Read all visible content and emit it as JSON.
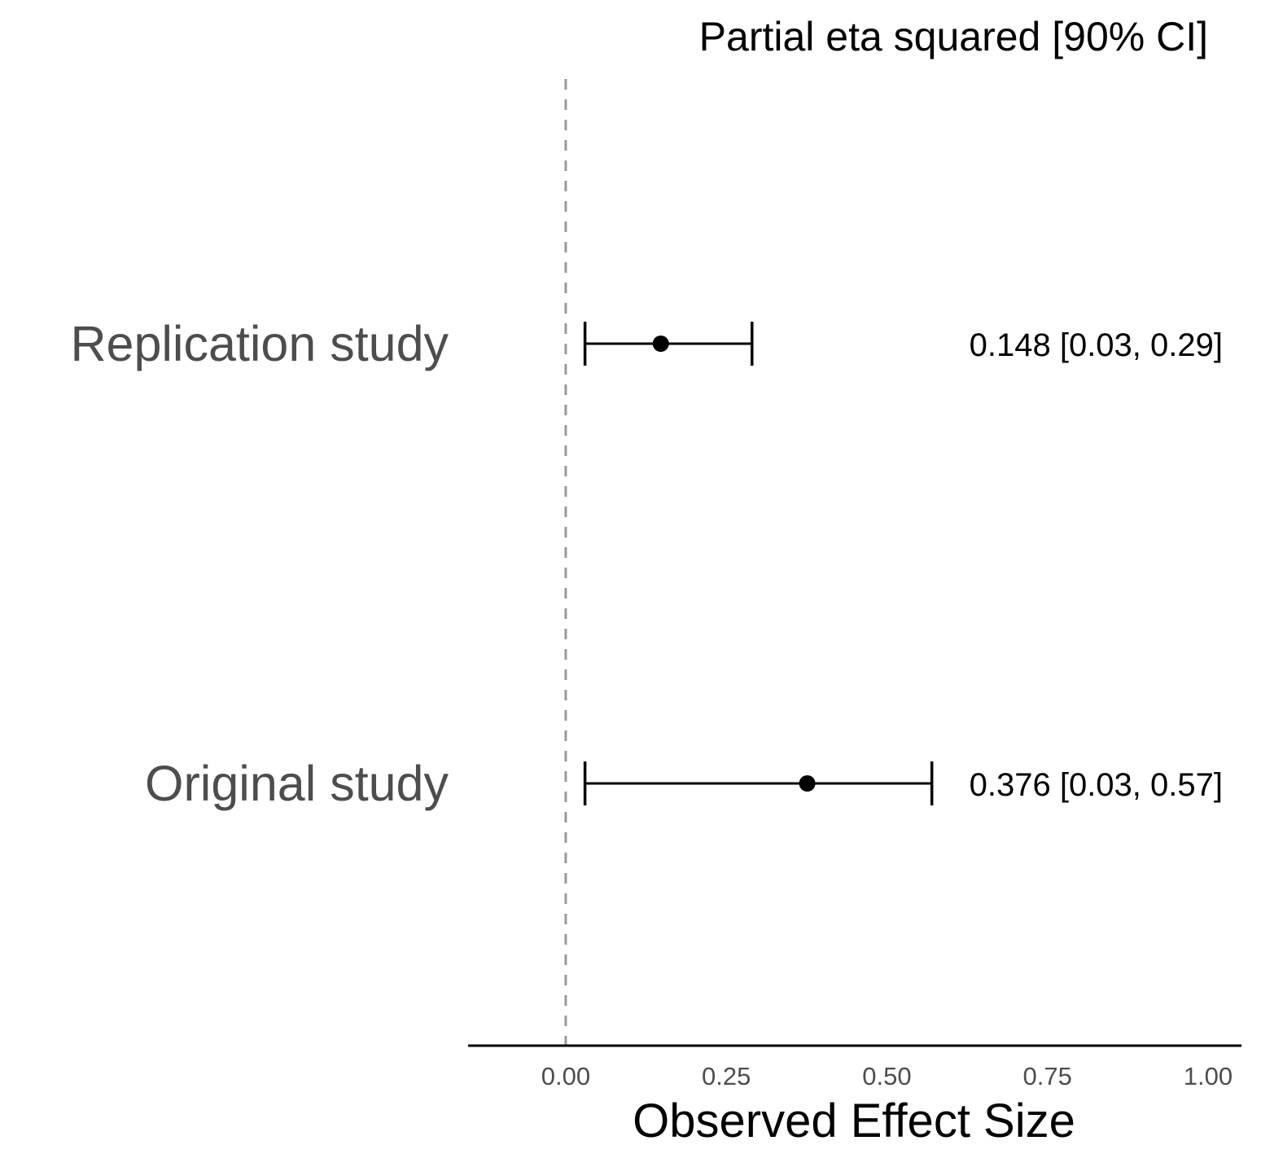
{
  "chart_data": {
    "type": "forest",
    "title": "",
    "right_header": "Partial eta squared [90% CI]",
    "xlabel": "Observed Effect Size",
    "ylabel": "",
    "xlim": [
      -0.152,
      1.052
    ],
    "x_ticks": [
      0,
      0.25,
      0.5,
      0.75,
      1
    ],
    "x_tick_labels": [
      "0.00",
      "0.25",
      "0.50",
      "0.75",
      "1.00"
    ],
    "reference_line": 0,
    "studies": [
      {
        "label": "Replication study",
        "estimate": 0.148,
        "lower": 0.03,
        "upper": 0.29,
        "annotation": "0.148 [0.03, 0.29]"
      },
      {
        "label": "Original study",
        "estimate": 0.376,
        "lower": 0.03,
        "upper": 0.57,
        "annotation": "0.376 [0.03, 0.57]"
      }
    ],
    "grid": false
  },
  "colors": {
    "marks": "#000000",
    "reference_line": "#999999",
    "axis_text": "#4d4d4d",
    "title_text": "#000000"
  }
}
